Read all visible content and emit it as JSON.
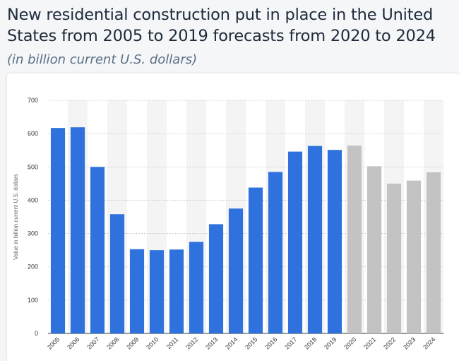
{
  "header": {
    "title": "New residential construction put in place in the United States from 2005 to 2019  forecasts from 2020 to 2024",
    "subtitle": "(in billion current U.S. dollars)"
  },
  "colors": {
    "actual": "#2f72dd",
    "forecast": "#c3c3c3",
    "stripe": "#f4f4f4",
    "grid": "#c8c8c8"
  },
  "chart_data": {
    "type": "bar",
    "title": "New residential construction put in place in the United States from 2005 to 2019  forecasts from 2020 to 2024",
    "subtitle": "(in billion current U.S. dollars)",
    "xlabel": "",
    "ylabel": "Value in billion current U.S. dollars",
    "ylim": [
      0,
      700
    ],
    "yticks": [
      0,
      100,
      200,
      300,
      400,
      500,
      600,
      700
    ],
    "grid": true,
    "categories": [
      "2005",
      "2006",
      "2007",
      "2008",
      "2009",
      "2010",
      "2011",
      "2012",
      "2013",
      "2014",
      "2015",
      "2016",
      "2017",
      "2018",
      "2019",
      "2020",
      "2021",
      "2022",
      "2023",
      "2024"
    ],
    "values": [
      617,
      619,
      500,
      358,
      253,
      250,
      252,
      275,
      328,
      375,
      438,
      485,
      546,
      563,
      551,
      564,
      502,
      450,
      459,
      484
    ],
    "forecast_from": "2020"
  }
}
